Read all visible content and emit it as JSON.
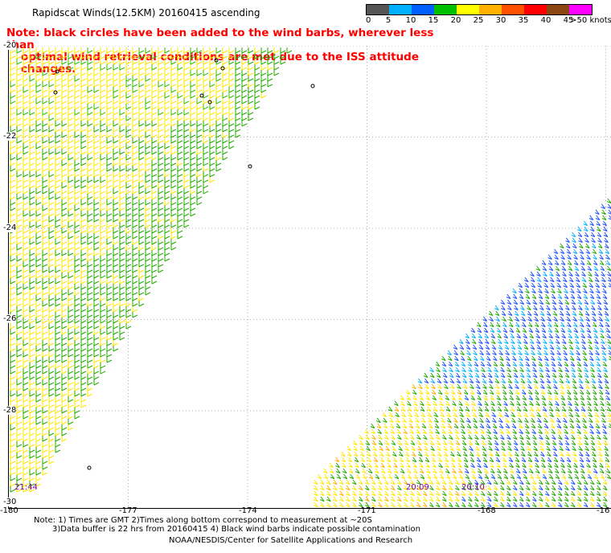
{
  "title": "Rapidscat Winds(12.5KM) 20160415 ascending",
  "note_line1": "Note: black circles have been added to the wind barbs, wherever less than",
  "note_line2": "optimal wind retrieval conditions are met due to the ISS attitude changes.",
  "legend": {
    "labels": [
      "0",
      "5",
      "10",
      "15",
      "20",
      "25",
      "30",
      "35",
      "40",
      "45",
      ">50 knots"
    ],
    "colors": [
      "#555555",
      "#00b0ff",
      "#0060ff",
      "#00c000",
      "#ffff00",
      "#ffb000",
      "#ff5000",
      "#ff0000",
      "#8b4513",
      "#ff00ff",
      "#5000a0"
    ]
  },
  "axis": {
    "lon_labels": [
      "-180",
      "-177",
      "-174",
      "-171",
      "-168",
      "-16"
    ],
    "lat_labels": [
      "-20",
      "-22",
      "-24",
      "-26",
      "-28",
      "-30"
    ]
  },
  "times": [
    "21:44",
    "20:09",
    "20:10"
  ],
  "footer": {
    "line1": "Note: 1) Times are GMT 2)Times along bottom correspond to measurement at ~20S",
    "line2": "3)Data buffer is 22 hrs from 20160415 4) Black wind barbs indicate possible contamination",
    "line3": "NOAA/NESDIS/Center for Satellite Applications and Research"
  }
}
